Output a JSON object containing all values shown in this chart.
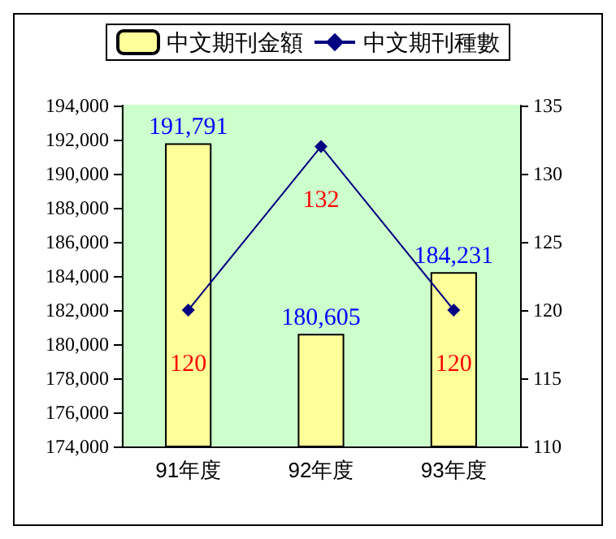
{
  "chart_data": {
    "type": "bar",
    "categories": [
      "91年度",
      "92年度",
      "93年度"
    ],
    "series": [
      {
        "name": "中文期刊金額",
        "color": "#ffff99",
        "values": [
          191791,
          180605,
          184231
        ],
        "value_labels": [
          "191,791",
          "180,605",
          "184,231"
        ]
      },
      {
        "name": "中文期刊種數",
        "type": "line",
        "axis": "y2",
        "color": "#000080",
        "values": [
          120,
          132,
          120
        ]
      }
    ],
    "ylim": [
      174000,
      194000
    ],
    "yticks": [
      {
        "value": 174000,
        "label": "174,000"
      },
      {
        "value": 176000,
        "label": "176,000"
      },
      {
        "value": 178000,
        "label": "178,000"
      },
      {
        "value": 180000,
        "label": "180,000"
      },
      {
        "value": 182000,
        "label": "182,000"
      },
      {
        "value": 184000,
        "label": "184,000"
      },
      {
        "value": 186000,
        "label": "186,000"
      },
      {
        "value": 188000,
        "label": "188,000"
      },
      {
        "value": 190000,
        "label": "190,000"
      },
      {
        "value": 192000,
        "label": "192,000"
      },
      {
        "value": 194000,
        "label": "194,000"
      }
    ],
    "y2lim": [
      110,
      135
    ],
    "y2ticks": [
      110,
      115,
      120,
      125,
      130,
      135
    ],
    "data_labels": true,
    "legend": "top",
    "grid": false,
    "marker": "diamond",
    "line_style": "solid"
  }
}
